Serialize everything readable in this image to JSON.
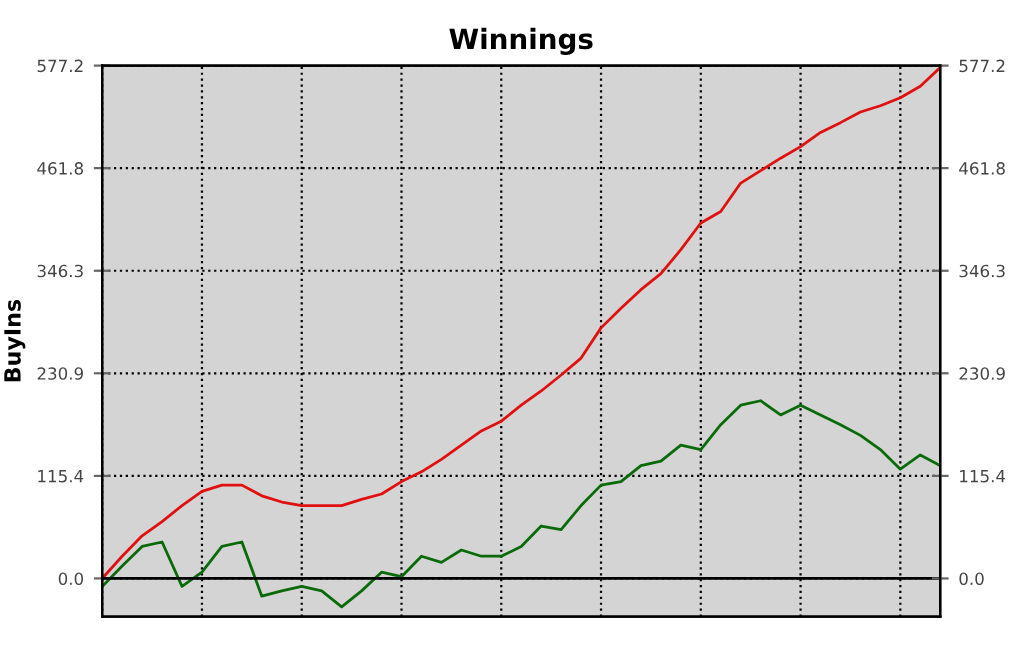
{
  "chart_data": {
    "type": "line",
    "title": "Winnings",
    "ylabel": "BuyIns",
    "categories": [
      null,
      null,
      null,
      null,
      null,
      null,
      null,
      null,
      null,
      null,
      null,
      null,
      null,
      null,
      null,
      null,
      null,
      null,
      null,
      null,
      null,
      null,
      null,
      null,
      null,
      null,
      null,
      null,
      null,
      null,
      null,
      null,
      null,
      null,
      null,
      null,
      null,
      null,
      null,
      null,
      null,
      null,
      null
    ],
    "series": [
      {
        "color": "#e01010",
        "values": [
          0,
          25,
          48,
          64,
          82,
          98,
          105,
          105,
          93,
          86,
          82,
          82,
          82,
          89,
          95,
          109,
          120,
          134,
          150,
          166,
          177,
          195,
          211,
          229,
          248,
          282,
          304,
          325,
          343,
          370,
          400,
          413,
          445,
          459,
          473,
          486,
          502,
          513,
          525,
          532,
          541,
          554,
          575
        ]
      },
      {
        "color": "#0a6a0a",
        "values": [
          -9,
          14,
          36,
          41,
          -9,
          7,
          36,
          41,
          -20,
          -14,
          -9,
          -14,
          -32,
          -14,
          7,
          2,
          25,
          18,
          32,
          25,
          25,
          36,
          59,
          55,
          82,
          105,
          109,
          127,
          132,
          150,
          145,
          173,
          195,
          200,
          184,
          195,
          184,
          173,
          161,
          145,
          123,
          139,
          127
        ]
      }
    ],
    "ylim": [
      -43,
      577.2
    ],
    "yticks": [
      {
        "value": 0,
        "label": "0.0"
      },
      {
        "value": 115.4,
        "label": "115.4"
      },
      {
        "value": 230.9,
        "label": "230.9"
      },
      {
        "value": 346.3,
        "label": "346.3"
      },
      {
        "value": 461.8,
        "label": "461.8"
      },
      {
        "value": 577.2,
        "label": "577.2"
      }
    ],
    "y2lim": [
      -43,
      577.2
    ],
    "y2ticks": [
      {
        "value": 0,
        "label": "0.0"
      },
      {
        "value": 115.4,
        "label": "115.4"
      },
      {
        "value": 230.9,
        "label": "230.9"
      },
      {
        "value": 346.3,
        "label": "346.3"
      },
      {
        "value": 461.8,
        "label": "461.8"
      },
      {
        "value": 577.2,
        "label": "577.2"
      }
    ],
    "ref_lines": [
      {
        "axis": "y",
        "value": 0,
        "color": "#000000"
      }
    ],
    "grid": true,
    "line_style": "solid"
  }
}
